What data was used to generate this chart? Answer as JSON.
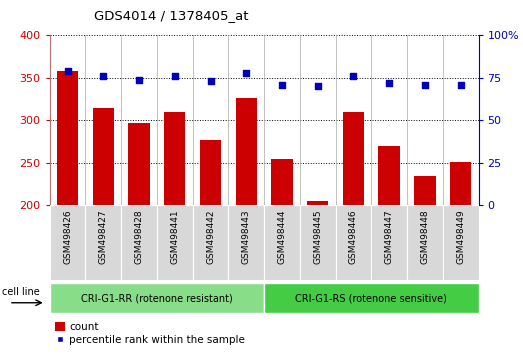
{
  "title": "GDS4014 / 1378405_at",
  "samples": [
    "GSM498426",
    "GSM498427",
    "GSM498428",
    "GSM498441",
    "GSM498442",
    "GSM498443",
    "GSM498444",
    "GSM498445",
    "GSM498446",
    "GSM498447",
    "GSM498448",
    "GSM498449"
  ],
  "counts": [
    358,
    315,
    297,
    310,
    277,
    326,
    254,
    205,
    310,
    270,
    234,
    251
  ],
  "percentile_ranks": [
    79,
    76,
    74,
    76,
    73,
    78,
    71,
    70,
    76,
    72,
    71,
    71
  ],
  "bar_color": "#cc0000",
  "dot_color": "#0000bb",
  "ylim_left": [
    200,
    400
  ],
  "ylim_right": [
    0,
    100
  ],
  "yticks_left": [
    200,
    250,
    300,
    350,
    400
  ],
  "yticks_right": [
    0,
    25,
    50,
    75,
    100
  ],
  "group1_label": "CRI-G1-RR (rotenone resistant)",
  "group2_label": "CRI-G1-RS (rotenone sensitive)",
  "group1_color": "#88dd88",
  "group2_color": "#44cc44",
  "group1_count": 6,
  "group2_count": 6,
  "cell_line_label": "cell line",
  "legend_count_label": "count",
  "legend_percentile_label": "percentile rank within the sample",
  "bg_color": "#ffffff",
  "plot_bg_color": "#ffffff",
  "cell_bg_color": "#d8d8d8",
  "ylabel_left_color": "#cc0000",
  "ylabel_right_color": "#0000bb"
}
